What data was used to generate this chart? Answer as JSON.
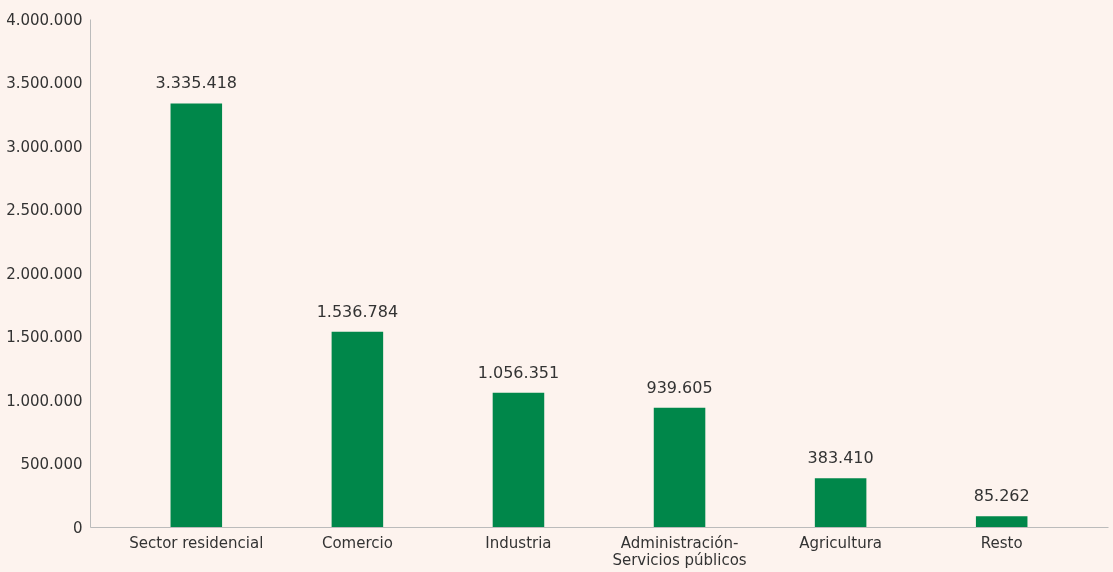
{
  "chart_data": {
    "type": "bar",
    "categories": [
      "Sector residencial",
      "Comercio",
      "Industria",
      "Administración-\nServicios públicos",
      "Agricultura",
      "Resto"
    ],
    "values": [
      3335418,
      1536784,
      1056351,
      939605,
      383410,
      85262
    ],
    "color": "#00874a",
    "value_labels": [
      "3.335.418",
      "1.536.784",
      "1.056.351",
      "939.605",
      "383.410",
      "85.262"
    ],
    "ylim": [
      0,
      4000000
    ],
    "yticks": [
      {
        "value": 0,
        "label": "0"
      },
      {
        "value": 500000,
        "label": "500.000"
      },
      {
        "value": 1000000,
        "label": "1.000.000"
      },
      {
        "value": 1500000,
        "label": "1.500.000"
      },
      {
        "value": 2000000,
        "label": "2.000.000"
      },
      {
        "value": 2500000,
        "label": "2.500.000"
      },
      {
        "value": 3000000,
        "label": "3.000.000"
      },
      {
        "value": 3500000,
        "label": "3.500.000"
      },
      {
        "value": 4000000,
        "label": "4.000.000"
      }
    ],
    "grid": false
  }
}
